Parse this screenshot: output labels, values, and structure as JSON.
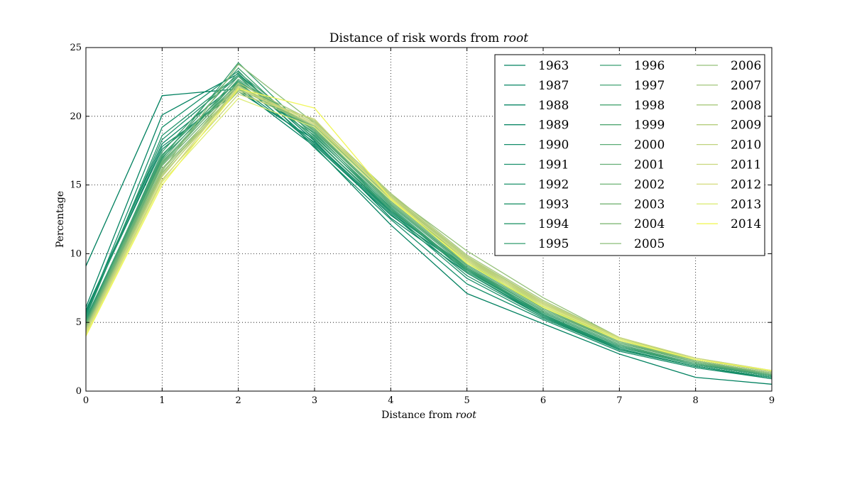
{
  "chart_data": {
    "type": "line",
    "title": {
      "prefix": "Distance of risk words from ",
      "emphasis": "root"
    },
    "xlabel": {
      "prefix": "Distance from ",
      "emphasis": "root"
    },
    "ylabel": "Percentage",
    "xlim": [
      0,
      9
    ],
    "ylim": [
      0,
      25
    ],
    "x_ticks": [
      "0",
      "1",
      "2",
      "3",
      "4",
      "5",
      "6",
      "7",
      "8",
      "9"
    ],
    "y_ticks": [
      "0",
      "5",
      "10",
      "15",
      "20",
      "25"
    ],
    "grid": true,
    "legend_placement": "top-right",
    "legend_columns": 3,
    "x": [
      0,
      1,
      2,
      3,
      4,
      5,
      6,
      7,
      8,
      9
    ],
    "series": [
      {
        "name": "1963",
        "color": "#00805f",
        "values": [
          9.1,
          21.5,
          22.0,
          17.8,
          12.1,
          7.1,
          4.9,
          2.7,
          1.0,
          0.5
        ]
      },
      {
        "name": "1987",
        "color": "#048362",
        "values": [
          6.1,
          20.1,
          23.1,
          18.2,
          12.6,
          8.6,
          5.4,
          3.0,
          1.8,
          0.9
        ]
      },
      {
        "name": "1988",
        "color": "#098664",
        "values": [
          5.9,
          18.0,
          22.5,
          17.9,
          12.8,
          8.8,
          5.5,
          3.0,
          1.8,
          1.0
        ]
      },
      {
        "name": "1989",
        "color": "#0e8967",
        "values": [
          5.8,
          17.6,
          22.1,
          18.1,
          13.0,
          8.9,
          5.5,
          3.1,
          1.8,
          1.0
        ]
      },
      {
        "name": "1990",
        "color": "#138c69",
        "values": [
          5.7,
          17.8,
          21.8,
          18.3,
          13.1,
          9.0,
          5.6,
          3.1,
          1.8,
          1.0
        ]
      },
      {
        "name": "1991",
        "color": "#188f6b",
        "values": [
          5.6,
          19.2,
          23.3,
          17.7,
          12.5,
          7.8,
          5.2,
          2.9,
          1.7,
          0.9
        ]
      },
      {
        "name": "1992",
        "color": "#1e926c",
        "values": [
          5.5,
          18.3,
          22.9,
          18.0,
          12.9,
          8.2,
          5.3,
          3.0,
          1.8,
          1.0
        ]
      },
      {
        "name": "1993",
        "color": "#24956d",
        "values": [
          5.4,
          18.6,
          23.0,
          18.4,
          13.0,
          8.4,
          5.4,
          3.1,
          1.8,
          1.0
        ]
      },
      {
        "name": "1994",
        "color": "#2a986e",
        "values": [
          5.3,
          17.0,
          22.4,
          18.6,
          13.2,
          8.6,
          5.5,
          3.2,
          1.9,
          1.1
        ]
      },
      {
        "name": "1995",
        "color": "#309b6f",
        "values": [
          5.2,
          17.2,
          22.6,
          18.8,
          13.3,
          8.7,
          5.6,
          3.2,
          1.9,
          1.1
        ]
      },
      {
        "name": "1996",
        "color": "#389e70",
        "values": [
          5.1,
          16.9,
          23.9,
          18.5,
          13.4,
          8.8,
          5.7,
          3.3,
          1.9,
          1.1
        ]
      },
      {
        "name": "1997",
        "color": "#40a171",
        "values": [
          5.0,
          17.4,
          23.5,
          18.3,
          13.2,
          8.9,
          5.7,
          3.3,
          2.0,
          1.1
        ]
      },
      {
        "name": "1998",
        "color": "#48a472",
        "values": [
          5.0,
          17.1,
          23.2,
          18.7,
          13.5,
          9.0,
          5.8,
          3.4,
          2.0,
          1.2
        ]
      },
      {
        "name": "1999",
        "color": "#51a773",
        "values": [
          4.9,
          16.8,
          22.9,
          18.9,
          13.6,
          9.1,
          5.8,
          3.4,
          2.0,
          1.2
        ]
      },
      {
        "name": "2000",
        "color": "#5aab74",
        "values": [
          4.9,
          16.6,
          22.7,
          19.0,
          13.6,
          9.2,
          5.9,
          3.5,
          2.1,
          1.2
        ]
      },
      {
        "name": "2001",
        "color": "#63ae74",
        "values": [
          4.8,
          16.5,
          22.5,
          19.1,
          13.7,
          9.3,
          6.0,
          3.5,
          2.1,
          1.2
        ]
      },
      {
        "name": "2002",
        "color": "#6db275",
        "values": [
          4.8,
          16.7,
          22.3,
          19.0,
          13.8,
          9.4,
          6.0,
          3.6,
          2.1,
          1.3
        ]
      },
      {
        "name": "2003",
        "color": "#77b576",
        "values": [
          4.7,
          16.4,
          22.2,
          19.2,
          13.9,
          9.5,
          6.1,
          3.6,
          2.2,
          1.3
        ]
      },
      {
        "name": "2004",
        "color": "#81b977",
        "values": [
          4.7,
          16.2,
          22.0,
          19.3,
          14.0,
          9.6,
          6.2,
          3.7,
          2.2,
          1.3
        ]
      },
      {
        "name": "2005",
        "color": "#8bbd78",
        "values": [
          4.6,
          16.0,
          23.8,
          19.5,
          14.1,
          9.7,
          6.3,
          3.8,
          2.2,
          1.3
        ]
      },
      {
        "name": "2006",
        "color": "#95c179",
        "values": [
          4.6,
          15.9,
          22.0,
          19.4,
          14.3,
          10.2,
          6.8,
          3.9,
          2.3,
          1.4
        ]
      },
      {
        "name": "2007",
        "color": "#a0c57a",
        "values": [
          4.5,
          16.1,
          21.8,
          19.3,
          14.2,
          9.8,
          6.5,
          3.8,
          2.3,
          1.4
        ]
      },
      {
        "name": "2008",
        "color": "#aac97b",
        "values": [
          4.5,
          15.8,
          22.4,
          19.6,
          14.4,
          9.9,
          6.6,
          3.9,
          2.3,
          1.4
        ]
      },
      {
        "name": "2009",
        "color": "#b4cd7c",
        "values": [
          4.4,
          15.7,
          21.9,
          19.7,
          14.3,
          9.8,
          6.4,
          3.8,
          2.3,
          1.4
        ]
      },
      {
        "name": "2010",
        "color": "#bfd27c",
        "values": [
          4.4,
          15.6,
          22.2,
          19.5,
          14.2,
          9.7,
          6.5,
          3.9,
          2.4,
          1.5
        ]
      },
      {
        "name": "2011",
        "color": "#c9d67c",
        "values": [
          4.3,
          15.4,
          21.6,
          19.8,
          14.0,
          9.6,
          6.4,
          3.9,
          2.4,
          1.5
        ]
      },
      {
        "name": "2012",
        "color": "#d4db7c",
        "values": [
          4.2,
          15.3,
          22.1,
          19.4,
          14.1,
          9.5,
          6.3,
          3.8,
          2.3,
          1.5
        ]
      },
      {
        "name": "2013",
        "color": "#ddec7a",
        "values": [
          4.1,
          15.2,
          21.3,
          19.2,
          13.9,
          9.4,
          6.2,
          3.8,
          2.3,
          1.5
        ]
      },
      {
        "name": "2014",
        "color": "#f1f75a",
        "values": [
          4.0,
          15.0,
          22.0,
          20.6,
          14.0,
          9.3,
          6.1,
          3.7,
          2.3,
          1.5
        ]
      }
    ]
  }
}
